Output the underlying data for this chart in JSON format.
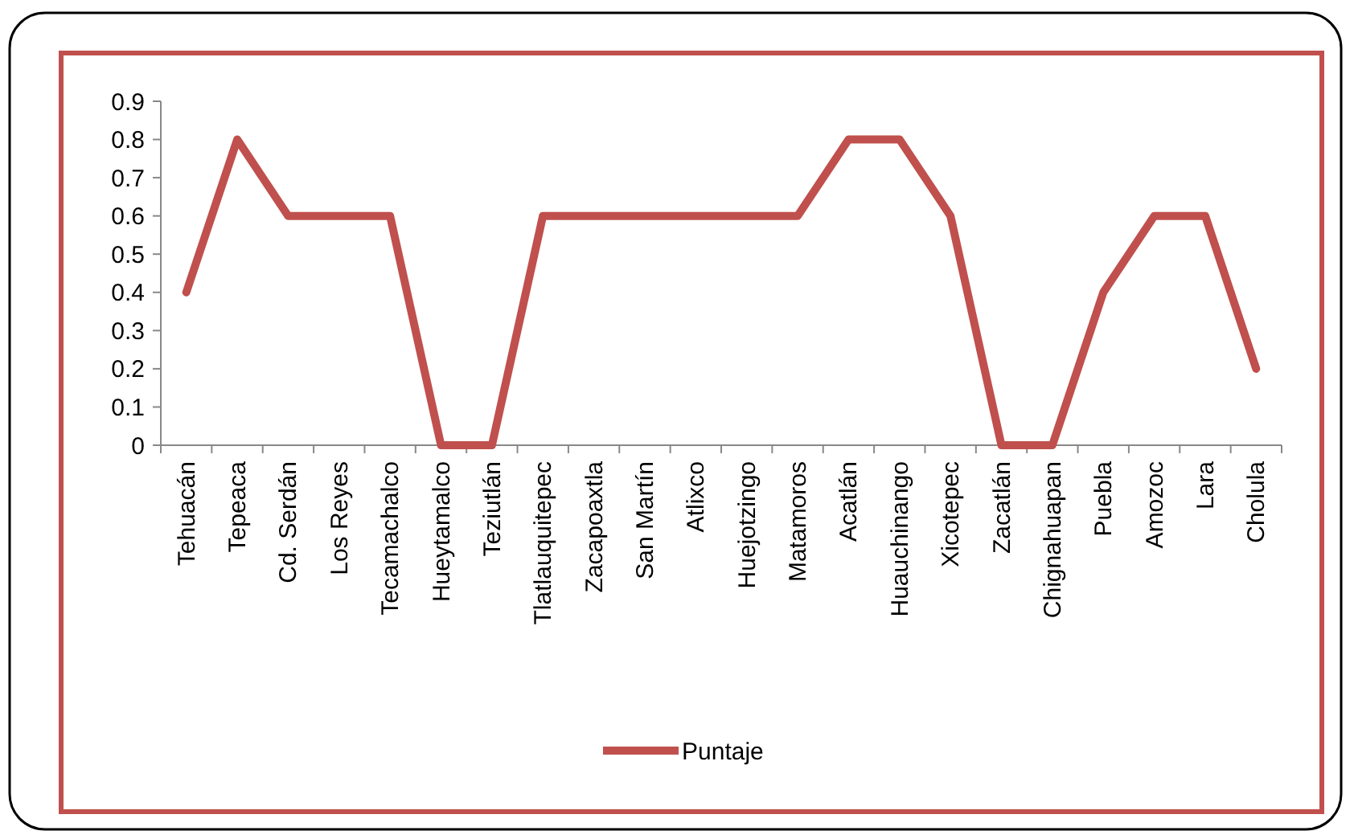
{
  "chart_data": {
    "type": "line",
    "categories": [
      "Tehuacán",
      "Tepeaca",
      "Cd. Serdán",
      "Los Reyes",
      "Tecamachalco",
      "Hueytamalco",
      "Teziutlán",
      "Tlatlauquitepec",
      "Zacapoaxtla",
      "San Martín",
      "Atlixco",
      "Huejotzingo",
      "Matamoros",
      "Acatlán",
      "Huauchinango",
      "Xicotepec",
      "Zacatlán",
      "Chignahuapan",
      "Puebla",
      "Amozoc",
      "Lara",
      "Cholula"
    ],
    "series": [
      {
        "name": "Puntaje",
        "color": "#c0504d",
        "values": [
          0.4,
          0.8,
          0.6,
          0.6,
          0.6,
          0,
          0,
          0.6,
          0.6,
          0.6,
          0.6,
          0.6,
          0.6,
          0.8,
          0.8,
          0.6,
          0,
          0,
          0.4,
          0.6,
          0.6,
          0.2
        ]
      }
    ],
    "ylim": [
      0,
      0.9
    ],
    "yticks": [
      0,
      0.1,
      0.2,
      0.3,
      0.4,
      0.5,
      0.6,
      0.7,
      0.8,
      0.9
    ],
    "grid": false,
    "legend": "bottom",
    "marker": "none",
    "line_style": "solid"
  }
}
